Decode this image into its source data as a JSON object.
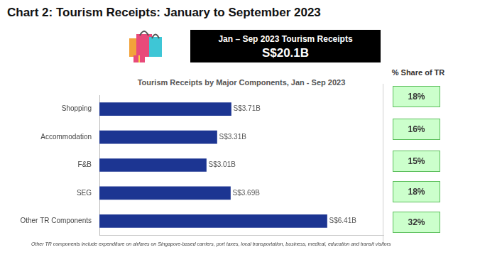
{
  "title": "Chart 2: Tourism Receipts: January to September 2023",
  "banner": {
    "label": "Jan – Sep 2023 Tourism Receipts",
    "value": "S$20.1B"
  },
  "share_panel": {
    "title": "% Share of TR",
    "shares": [
      "18%",
      "16%",
      "15%",
      "18%",
      "32%"
    ]
  },
  "note": "Other TR components include expenditure on airfares on Singapore-based carriers, port taxes, local transportation, business, medical, education and transit visitors",
  "chart_data": {
    "type": "bar",
    "title": "Tourism Receipts by Major Components, Jan - Sep 2023",
    "orientation": "horizontal",
    "categories": [
      "Shopping",
      "Accommodation",
      "F&B",
      "SEG",
      "Other TR Components"
    ],
    "values": [
      3.71,
      3.31,
      3.01,
      3.69,
      6.41
    ],
    "value_labels": [
      "S$3.71B",
      "S$3.31B",
      "S$3.01B",
      "S$3.69B",
      "S$6.41B"
    ],
    "data_labels": true,
    "color": "#1c3592",
    "xlim": [
      0,
      8
    ],
    "grid": false,
    "tick_labels": "y"
  }
}
